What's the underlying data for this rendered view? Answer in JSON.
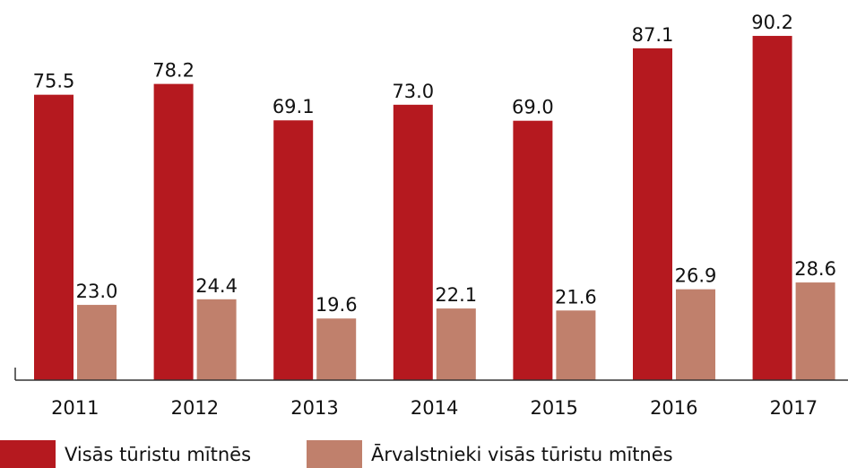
{
  "chart_data": {
    "type": "bar",
    "categories": [
      "2011",
      "2012",
      "2013",
      "2014",
      "2015",
      "2016",
      "2017"
    ],
    "series": [
      {
        "name": "Visās tūristu mītnēs",
        "color": "#b5191f",
        "values": [
          75.5,
          78.2,
          69.1,
          73.0,
          69.0,
          87.1,
          90.2
        ],
        "value_labels": [
          "75.5",
          "78.2",
          "69.1",
          "73.0",
          "69.0",
          "87.1",
          "90.2"
        ]
      },
      {
        "name": "Ārvalstnieki visās tūristu mītnēs",
        "color": "#c0806c",
        "values": [
          23.0,
          24.4,
          19.6,
          22.1,
          21.6,
          26.9,
          28.6
        ],
        "value_labels": [
          "23.0",
          "24.4",
          "19.6",
          "22.1",
          "21.6",
          "26.9",
          "28.6"
        ]
      }
    ],
    "ylim": [
      4.2,
      92
    ]
  }
}
